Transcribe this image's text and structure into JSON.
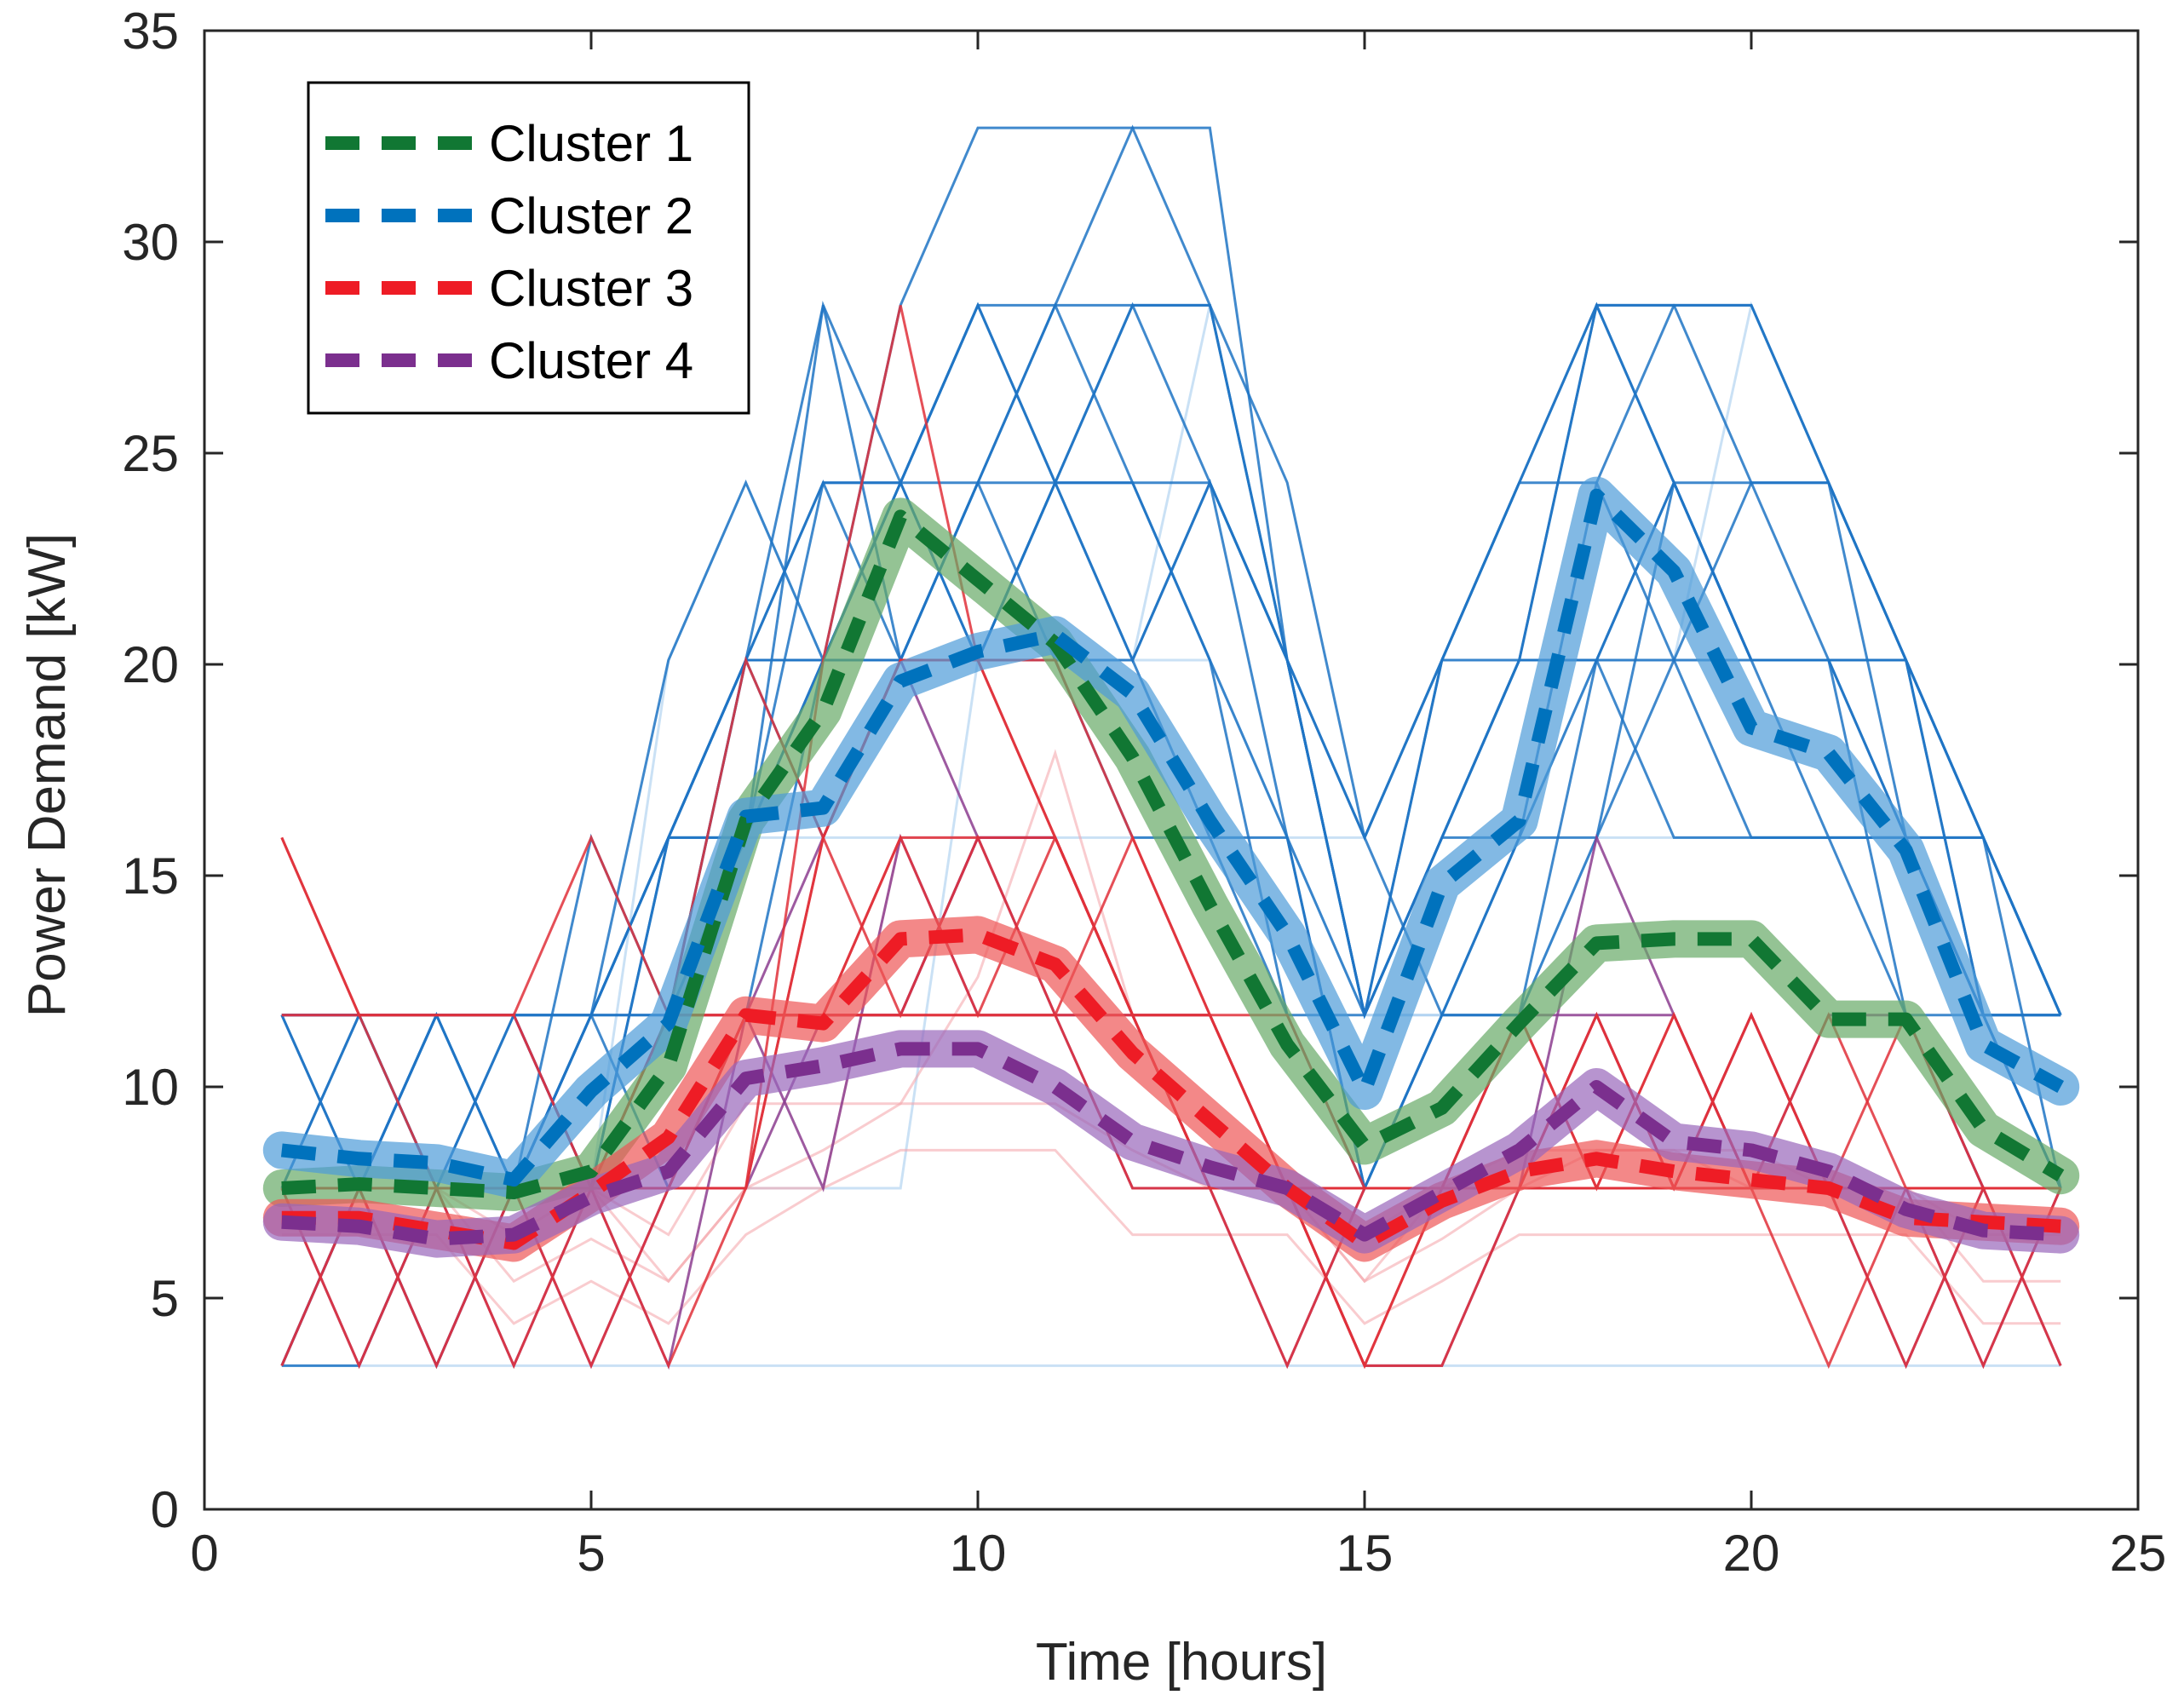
{
  "chart_data": {
    "type": "line",
    "title": "",
    "xlabel": "Time [hours]",
    "ylabel": "Power Demand [kW]",
    "xlim": [
      0,
      25
    ],
    "ylim": [
      0,
      35
    ],
    "xticks": [
      0,
      5,
      10,
      15,
      20,
      25
    ],
    "yticks": [
      0,
      5,
      10,
      15,
      20,
      25,
      30,
      35
    ],
    "x": [
      1,
      2,
      3,
      4,
      5,
      6,
      7,
      8,
      9,
      10,
      11,
      12,
      13,
      14,
      15,
      16,
      17,
      18,
      19,
      20,
      21,
      22,
      23,
      24
    ],
    "legend_position": "top-left",
    "series": [
      {
        "name": "Cluster 1",
        "color": "#117733",
        "band_color": "#66aa66",
        "values": [
          7.6,
          7.7,
          7.6,
          7.5,
          8.0,
          10.5,
          16.3,
          18.9,
          23.5,
          22.0,
          20.5,
          17.8,
          14.3,
          11.0,
          8.6,
          9.5,
          11.5,
          13.4,
          13.5,
          13.5,
          11.6,
          11.6,
          9.0,
          7.9
        ]
      },
      {
        "name": "Cluster 2",
        "color": "#0072bd",
        "band_color": "#4d9bd8",
        "values": [
          8.5,
          8.3,
          8.2,
          7.8,
          9.9,
          11.5,
          16.4,
          16.6,
          19.6,
          20.3,
          20.7,
          19.3,
          16.3,
          13.6,
          9.9,
          14.8,
          16.3,
          24.0,
          22.2,
          18.5,
          17.9,
          15.6,
          11.0,
          10.0
        ]
      },
      {
        "name": "Cluster 3",
        "color": "#ee1c25",
        "band_color": "#ee5555",
        "values": [
          6.9,
          6.9,
          6.6,
          6.3,
          7.5,
          8.8,
          11.7,
          11.5,
          13.5,
          13.6,
          12.9,
          10.8,
          9.2,
          7.6,
          6.3,
          7.3,
          8.0,
          8.3,
          8.0,
          7.8,
          7.6,
          6.9,
          6.8,
          6.7
        ]
      },
      {
        "name": "Cluster 4",
        "color": "#7b2f8e",
        "band_color": "#9966bb",
        "values": [
          6.8,
          6.7,
          6.4,
          6.5,
          7.4,
          8.0,
          10.2,
          10.5,
          10.9,
          10.9,
          10.0,
          8.7,
          8.1,
          7.6,
          6.5,
          7.5,
          8.5,
          10.0,
          8.7,
          8.5,
          8.0,
          7.1,
          6.6,
          6.5
        ]
      }
    ],
    "individual_profiles": {
      "levels": [
        3.4,
        7.6,
        11.7,
        15.9,
        20.1,
        24.3,
        28.5,
        32.7
      ],
      "blue": [
        [
          11.7,
          7.6,
          11.7,
          7.6,
          11.7,
          15.9,
          20.1,
          24.3,
          24.3,
          28.5,
          24.3,
          28.5,
          24.3,
          20.1,
          15.9,
          20.1,
          24.3,
          28.5,
          24.3,
          24.3,
          20.1,
          20.1,
          15.9,
          11.7
        ],
        [
          11.7,
          11.7,
          11.7,
          11.7,
          11.7,
          15.9,
          20.1,
          24.3,
          20.1,
          24.3,
          28.5,
          24.3,
          20.1,
          15.9,
          11.7,
          15.9,
          20.1,
          28.5,
          28.5,
          24.3,
          24.3,
          20.1,
          11.7,
          11.7
        ],
        [
          7.6,
          11.7,
          7.6,
          11.7,
          7.6,
          11.7,
          15.9,
          20.1,
          24.3,
          20.1,
          24.3,
          20.1,
          24.3,
          20.1,
          11.7,
          20.1,
          24.3,
          24.3,
          20.1,
          20.1,
          15.9,
          15.9,
          11.7,
          7.6
        ],
        [
          3.4,
          7.6,
          3.4,
          7.6,
          11.7,
          15.9,
          20.1,
          20.1,
          24.3,
          28.5,
          24.3,
          24.3,
          24.3,
          20.1,
          11.7,
          15.9,
          15.9,
          20.1,
          24.3,
          20.1,
          20.1,
          15.9,
          15.9,
          7.6
        ],
        [
          11.7,
          11.7,
          11.7,
          7.6,
          11.7,
          11.7,
          20.1,
          28.5,
          20.1,
          20.1,
          20.1,
          15.9,
          15.9,
          11.7,
          7.6,
          11.7,
          15.9,
          24.3,
          28.5,
          28.5,
          24.3,
          20.1,
          15.9,
          11.7
        ],
        [
          7.6,
          7.6,
          11.7,
          11.7,
          7.6,
          15.9,
          15.9,
          24.3,
          24.3,
          24.3,
          20.1,
          20.1,
          15.9,
          15.9,
          7.6,
          11.7,
          11.7,
          20.1,
          24.3,
          20.1,
          20.1,
          11.7,
          7.6,
          7.6
        ],
        [
          3.4,
          3.4,
          7.6,
          7.6,
          11.7,
          11.7,
          15.9,
          20.1,
          20.1,
          24.3,
          24.3,
          24.3,
          20.1,
          11.7,
          11.7,
          15.9,
          20.1,
          20.1,
          15.9,
          15.9,
          15.9,
          11.7,
          11.7,
          11.7
        ],
        [
          7.6,
          11.7,
          7.6,
          7.6,
          15.9,
          11.7,
          20.1,
          15.9,
          20.1,
          24.3,
          28.5,
          28.5,
          28.5,
          20.1,
          15.9,
          20.1,
          20.1,
          28.5,
          28.5,
          28.5,
          24.3,
          15.9,
          11.7,
          11.7
        ],
        [
          11.7,
          7.6,
          11.7,
          11.7,
          11.7,
          7.6,
          11.7,
          20.1,
          24.3,
          28.5,
          28.5,
          32.7,
          28.5,
          20.1,
          11.7,
          15.9,
          20.1,
          20.1,
          20.1,
          15.9,
          15.9,
          15.9,
          11.7,
          7.6
        ],
        [
          7.6,
          7.6,
          7.6,
          11.7,
          11.7,
          20.1,
          24.3,
          20.1,
          20.1,
          20.1,
          24.3,
          28.5,
          28.5,
          24.3,
          15.9,
          11.7,
          11.7,
          15.9,
          20.1,
          24.3,
          24.3,
          20.1,
          15.9,
          11.7
        ],
        [
          3.4,
          7.6,
          11.7,
          7.6,
          7.6,
          15.9,
          15.9,
          28.5,
          24.3,
          20.1,
          24.3,
          20.1,
          24.3,
          15.9,
          7.6,
          11.7,
          15.9,
          15.9,
          24.3,
          20.1,
          20.1,
          20.1,
          11.7,
          7.6
        ],
        [
          11.7,
          11.7,
          7.6,
          7.6,
          11.7,
          15.9,
          20.1,
          20.1,
          28.5,
          32.7,
          32.7,
          32.7,
          32.7,
          20.1,
          11.7,
          20.1,
          24.3,
          28.5,
          24.3,
          20.1,
          20.1,
          15.9,
          15.9,
          11.7
        ]
      ],
      "red": [
        [
          15.9,
          11.7,
          11.7,
          11.7,
          15.9,
          11.7,
          20.1,
          15.9,
          20.1,
          20.1,
          15.9,
          11.7,
          11.7,
          7.6,
          3.4,
          7.6,
          7.6,
          11.7,
          7.6,
          11.7,
          7.6,
          11.7,
          7.6,
          7.6
        ],
        [
          7.6,
          3.4,
          7.6,
          3.4,
          7.6,
          7.6,
          11.7,
          11.7,
          15.9,
          11.7,
          15.9,
          11.7,
          7.6,
          7.6,
          7.6,
          7.6,
          11.7,
          7.6,
          11.7,
          7.6,
          11.7,
          7.6,
          3.4,
          7.6
        ],
        [
          3.4,
          7.6,
          3.4,
          7.6,
          3.4,
          7.6,
          7.6,
          15.9,
          11.7,
          15.9,
          11.7,
          15.9,
          11.7,
          7.6,
          3.4,
          3.4,
          7.6,
          11.7,
          7.6,
          11.7,
          7.6,
          3.4,
          7.6,
          3.4
        ],
        [
          11.7,
          11.7,
          11.7,
          11.7,
          7.6,
          11.7,
          11.7,
          11.7,
          15.9,
          15.9,
          15.9,
          11.7,
          11.7,
          11.7,
          7.6,
          7.6,
          7.6,
          7.6,
          7.6,
          7.6,
          7.6,
          7.6,
          7.6,
          7.6
        ],
        [
          7.6,
          7.6,
          7.6,
          7.6,
          7.6,
          7.6,
          11.7,
          11.7,
          11.7,
          11.7,
          11.7,
          11.7,
          7.6,
          7.6,
          3.4,
          7.6,
          7.6,
          7.6,
          7.6,
          7.6,
          7.6,
          7.6,
          7.6,
          7.6
        ],
        [
          15.9,
          11.7,
          7.6,
          7.6,
          7.6,
          3.4,
          7.6,
          20.1,
          28.5,
          20.1,
          15.9,
          11.7,
          7.6,
          3.4,
          7.6,
          7.6,
          7.6,
          7.6,
          11.7,
          7.6,
          7.6,
          7.6,
          7.6,
          7.6
        ],
        [
          7.6,
          7.6,
          7.6,
          7.6,
          7.6,
          7.6,
          7.6,
          15.9,
          20.1,
          20.1,
          20.1,
          15.9,
          11.7,
          7.6,
          7.6,
          7.6,
          11.7,
          7.6,
          7.6,
          7.6,
          3.4,
          7.6,
          7.6,
          7.6
        ],
        [
          7.6,
          7.6,
          7.6,
          7.6,
          7.6,
          11.7,
          11.7,
          11.7,
          11.7,
          11.7,
          11.7,
          7.6,
          7.6,
          7.6,
          7.6,
          7.6,
          7.6,
          7.6,
          7.6,
          7.6,
          7.6,
          7.6,
          7.6,
          7.6
        ]
      ],
      "purple": [
        [
          3.4,
          7.6,
          3.4,
          7.6,
          3.4,
          7.6,
          7.6,
          11.7,
          11.7,
          15.9,
          15.9,
          11.7,
          7.6,
          7.6,
          3.4,
          3.4,
          7.6,
          15.9,
          11.7,
          7.6,
          7.6,
          3.4,
          7.6,
          3.4
        ],
        [
          7.6,
          3.4,
          7.6,
          3.4,
          7.6,
          3.4,
          11.7,
          7.6,
          15.9,
          11.7,
          11.7,
          7.6,
          7.6,
          3.4,
          7.6,
          7.6,
          11.7,
          11.7,
          11.7,
          7.6,
          7.6,
          7.6,
          3.4,
          7.6
        ],
        [
          7.6,
          7.6,
          7.6,
          7.6,
          7.6,
          7.6,
          11.7,
          11.7,
          11.7,
          15.9,
          11.7,
          11.7,
          7.6,
          7.6,
          7.6,
          7.6,
          7.6,
          11.7,
          7.6,
          11.7,
          7.6,
          7.6,
          7.6,
          7.6
        ],
        [
          11.7,
          11.7,
          11.7,
          11.7,
          7.6,
          11.7,
          11.7,
          15.9,
          20.1,
          15.9,
          15.9,
          11.7,
          11.7,
          7.6,
          7.6,
          7.6,
          7.6,
          7.6,
          7.6,
          7.6,
          11.7,
          11.7,
          7.6,
          7.6
        ]
      ],
      "faint": [
        [
          7.6,
          7.6,
          7.6,
          7.6,
          7.6,
          15.9,
          15.9,
          15.9,
          15.9,
          15.9,
          15.9,
          15.9,
          15.9,
          15.9,
          15.9,
          20.1,
          20.1,
          20.1,
          20.1,
          20.1,
          20.1,
          20.1,
          15.9,
          11.7
        ],
        [
          7.6,
          7.6,
          7.6,
          7.6,
          7.6,
          20.1,
          24.3,
          20.1,
          20.1,
          20.1,
          20.1,
          20.1,
          28.5,
          20.1,
          11.7,
          11.7,
          15.9,
          20.1,
          20.1,
          28.5,
          24.3,
          20.1,
          15.9,
          11.7
        ],
        [
          7.6,
          7.6,
          7.6,
          7.6,
          7.6,
          7.6,
          7.6,
          7.6,
          7.6,
          20.1,
          20.1,
          20.1,
          20.1,
          15.9,
          11.7,
          11.7,
          11.7,
          15.9,
          15.9,
          15.9,
          15.9,
          15.9,
          11.7,
          7.6
        ],
        [
          3.4,
          3.4,
          3.4,
          3.4,
          3.4,
          3.4,
          3.4,
          3.4,
          3.4,
          3.4,
          3.4,
          3.4,
          3.4,
          3.4,
          3.4,
          3.4,
          3.4,
          3.4,
          3.4,
          3.4,
          3.4,
          3.4,
          3.4,
          3.4
        ]
      ],
      "faint_red": [
        [
          7.6,
          7.6,
          7.6,
          5.4,
          6.4,
          5.4,
          7.6,
          8.5,
          9.6,
          12.6,
          17.9,
          11.7,
          7.6,
          7.6,
          5.4,
          6.4,
          7.6,
          8.5,
          8.5,
          7.6,
          7.6,
          7.6,
          5.4,
          5.4
        ],
        [
          6.5,
          6.5,
          6.5,
          4.4,
          5.4,
          4.4,
          6.5,
          7.6,
          8.5,
          8.5,
          8.5,
          6.5,
          6.5,
          6.5,
          4.4,
          5.4,
          6.5,
          6.5,
          6.5,
          6.5,
          6.5,
          6.5,
          4.4,
          4.4
        ],
        [
          7.6,
          7.6,
          7.6,
          6.5,
          7.6,
          6.5,
          9.6,
          9.6,
          9.6,
          9.6,
          9.6,
          8.5,
          7.6,
          7.6,
          6.5,
          7.6,
          8.5,
          8.5,
          8.5,
          8.5,
          7.6,
          7.6,
          6.5,
          6.5
        ],
        [
          7.6,
          7.6,
          7.6,
          7.6,
          7.6,
          5.4,
          7.6,
          7.6,
          15.9,
          15.9,
          11.7,
          11.7,
          11.7,
          7.6,
          5.4,
          7.6,
          7.6,
          7.6,
          7.6,
          7.6,
          7.6,
          7.6,
          7.6,
          7.6
        ]
      ]
    }
  }
}
